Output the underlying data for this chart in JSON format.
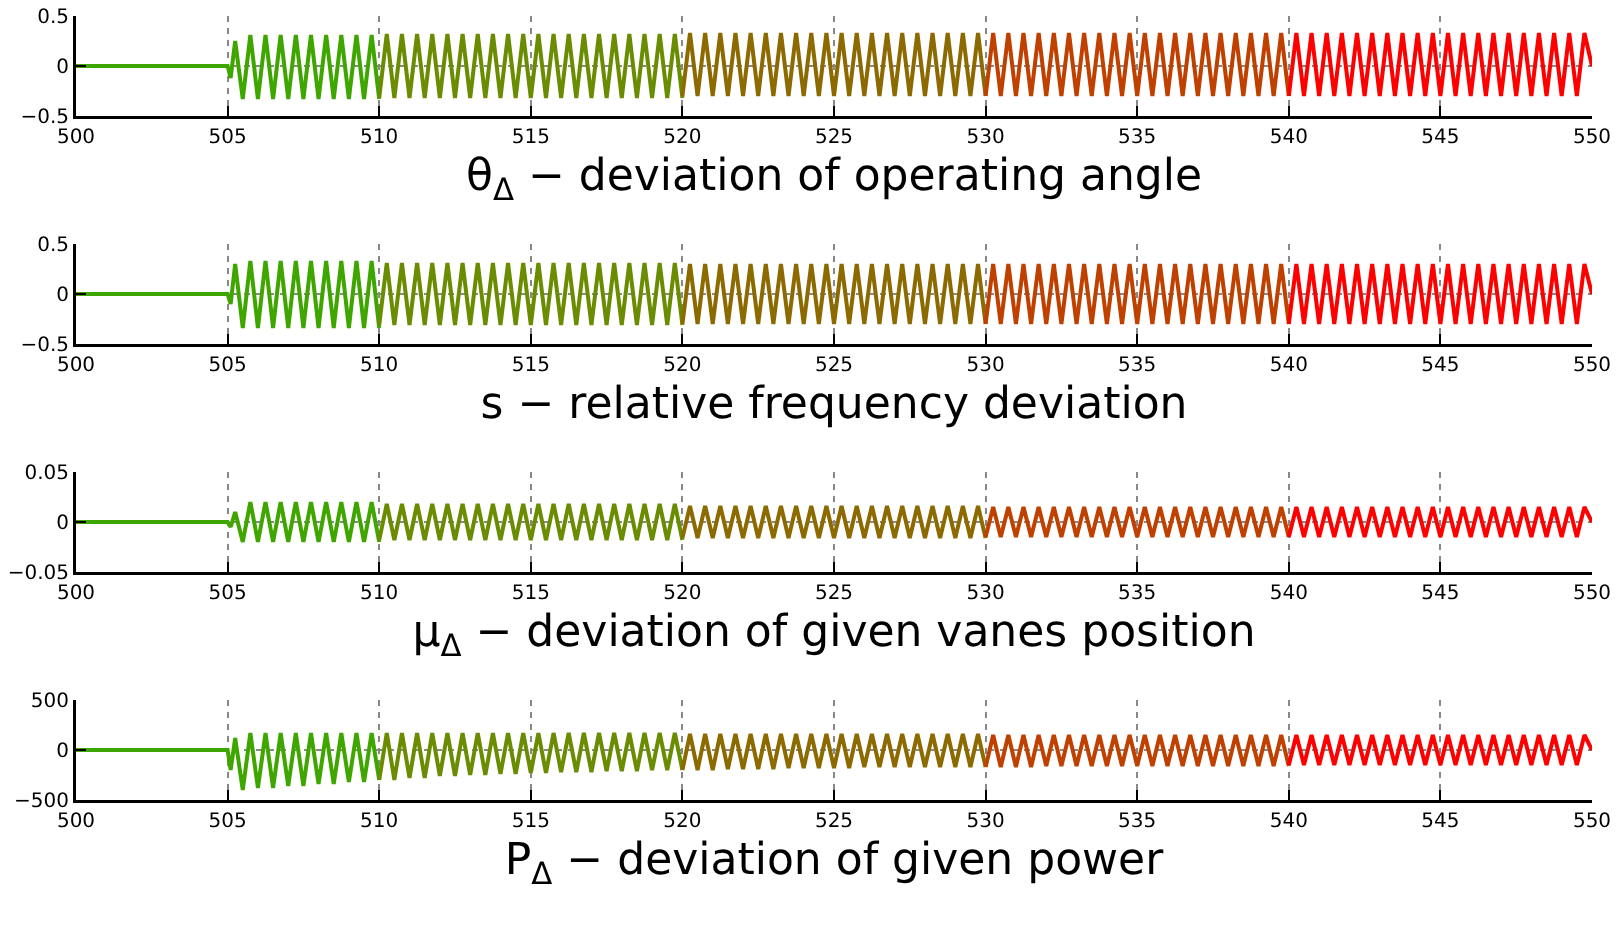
{
  "chart_data": [
    {
      "type": "line",
      "xlabel": "θ$_{Δ}$ − deviation of operating angle",
      "xlim": [
        500,
        550
      ],
      "xticks": [
        500,
        505,
        510,
        515,
        520,
        525,
        530,
        535,
        540,
        545,
        550
      ],
      "ylim": [
        -0.5,
        0.5
      ],
      "yticks": [
        -0.5,
        0,
        0.5
      ],
      "grid": true,
      "line_style": "solid",
      "marker": "none",
      "series": [
        {
          "color": "#3fa600",
          "x": [
            500,
            505,
            505.1,
            505.25,
            505.5,
            505.75,
            506,
            506.25,
            506.5,
            506.75,
            507,
            507.25,
            507.5,
            507.75,
            508,
            508.25,
            508.5,
            508.75,
            509,
            509.25,
            509.5,
            509.75,
            510
          ],
          "values": [
            0,
            0,
            -0.12,
            0.25,
            -0.33,
            0.31,
            -0.33,
            0.31,
            -0.33,
            0.31,
            -0.33,
            0.31,
            -0.33,
            0.31,
            -0.33,
            0.31,
            -0.33,
            0.31,
            -0.33,
            0.31,
            -0.33,
            0.31,
            -0.33
          ]
        },
        {
          "color": "#6a8c00",
          "x": [
            510,
            510.25,
            510.5,
            510.75,
            511,
            511.25,
            511.5,
            511.75,
            512,
            512.25,
            512.5,
            512.75,
            513,
            513.25,
            513.5,
            513.75,
            514,
            514.25,
            514.5,
            514.75,
            515,
            515.25,
            515.5,
            515.75,
            516,
            516.25,
            516.5,
            516.75,
            517,
            517.25,
            517.5,
            517.75,
            518,
            518.25,
            518.5,
            518.75,
            519,
            519.25,
            519.5,
            519.75,
            520
          ],
          "values": [
            -0.32,
            0.32,
            -0.32,
            0.32,
            -0.32,
            0.32,
            -0.32,
            0.32,
            -0.32,
            0.32,
            -0.32,
            0.32,
            -0.32,
            0.32,
            -0.32,
            0.32,
            -0.32,
            0.32,
            -0.32,
            0.32,
            -0.32,
            0.32,
            -0.32,
            0.32,
            -0.32,
            0.32,
            -0.32,
            0.32,
            -0.32,
            0.32,
            -0.32,
            0.32,
            -0.32,
            0.32,
            -0.32,
            0.32,
            -0.32,
            0.32,
            -0.32,
            0.32,
            -0.32
          ]
        },
        {
          "color": "#8c6a00",
          "x": [
            520,
            520.25,
            520.5,
            520.75,
            521,
            521.25,
            521.5,
            521.75,
            522,
            522.25,
            522.5,
            522.75,
            523,
            523.25,
            523.5,
            523.75,
            524,
            524.25,
            524.5,
            524.75,
            525,
            525.25,
            525.5,
            525.75,
            526,
            526.25,
            526.5,
            526.75,
            527,
            527.25,
            527.5,
            527.75,
            528,
            528.25,
            528.5,
            528.75,
            529,
            529.25,
            529.5,
            529.75,
            530
          ],
          "values": [
            -0.3,
            0.33,
            -0.3,
            0.33,
            -0.3,
            0.33,
            -0.3,
            0.33,
            -0.3,
            0.33,
            -0.3,
            0.33,
            -0.3,
            0.33,
            -0.3,
            0.33,
            -0.3,
            0.33,
            -0.3,
            0.33,
            -0.3,
            0.33,
            -0.3,
            0.33,
            -0.3,
            0.33,
            -0.3,
            0.33,
            -0.3,
            0.33,
            -0.3,
            0.33,
            -0.3,
            0.33,
            -0.3,
            0.33,
            -0.3,
            0.33,
            -0.3,
            0.33,
            -0.3
          ]
        },
        {
          "color": "#c04000",
          "x": [
            530,
            530.25,
            530.5,
            530.75,
            531,
            531.25,
            531.5,
            531.75,
            532,
            532.25,
            532.5,
            532.75,
            533,
            533.25,
            533.5,
            533.75,
            534,
            534.25,
            534.5,
            534.75,
            535,
            535.25,
            535.5,
            535.75,
            536,
            536.25,
            536.5,
            536.75,
            537,
            537.25,
            537.5,
            537.75,
            538,
            538.25,
            538.5,
            538.75,
            539,
            539.25,
            539.5,
            539.75,
            540
          ],
          "values": [
            -0.3,
            0.33,
            -0.3,
            0.33,
            -0.3,
            0.33,
            -0.3,
            0.33,
            -0.3,
            0.33,
            -0.3,
            0.33,
            -0.3,
            0.33,
            -0.3,
            0.33,
            -0.3,
            0.33,
            -0.3,
            0.33,
            -0.3,
            0.33,
            -0.3,
            0.33,
            -0.3,
            0.33,
            -0.3,
            0.33,
            -0.3,
            0.33,
            -0.3,
            0.33,
            -0.3,
            0.33,
            -0.3,
            0.33,
            -0.3,
            0.33,
            -0.3,
            0.33,
            -0.3
          ]
        },
        {
          "color": "#ff0000",
          "x": [
            540,
            540.25,
            540.5,
            540.75,
            541,
            541.25,
            541.5,
            541.75,
            542,
            542.25,
            542.5,
            542.75,
            543,
            543.25,
            543.5,
            543.75,
            544,
            544.25,
            544.5,
            544.75,
            545,
            545.25,
            545.5,
            545.75,
            546,
            546.25,
            546.5,
            546.75,
            547,
            547.25,
            547.5,
            547.75,
            548,
            548.25,
            548.5,
            548.75,
            549,
            549.25,
            549.5,
            549.75,
            550
          ],
          "values": [
            -0.3,
            0.33,
            -0.3,
            0.33,
            -0.3,
            0.33,
            -0.3,
            0.33,
            -0.3,
            0.33,
            -0.3,
            0.33,
            -0.3,
            0.33,
            -0.3,
            0.33,
            -0.3,
            0.33,
            -0.3,
            0.33,
            -0.3,
            0.33,
            -0.3,
            0.33,
            -0.3,
            0.33,
            -0.3,
            0.33,
            -0.3,
            0.33,
            -0.3,
            0.33,
            -0.3,
            0.33,
            -0.3,
            0.33,
            -0.3,
            0.33,
            -0.3,
            0.33,
            0
          ]
        }
      ]
    },
    {
      "type": "line",
      "xlabel": "s − relative frequency deviation",
      "xlim": [
        500,
        550
      ],
      "xticks": [
        500,
        505,
        510,
        515,
        520,
        525,
        530,
        535,
        540,
        545,
        550
      ],
      "ylim": [
        -0.5,
        0.5
      ],
      "yticks": [
        -0.5,
        0,
        0.5
      ],
      "grid": true,
      "line_style": "solid",
      "marker": "none",
      "series": [
        {
          "color": "#3fa600",
          "x": [
            500,
            505,
            505.1,
            505.25,
            505.5,
            505.75,
            506,
            506.25,
            506.5,
            506.75,
            507,
            507.25,
            507.5,
            507.75,
            508,
            508.25,
            508.5,
            508.75,
            509,
            509.25,
            509.5,
            509.75,
            510
          ],
          "values": [
            0,
            0,
            -0.1,
            0.3,
            -0.34,
            0.33,
            -0.34,
            0.33,
            -0.34,
            0.33,
            -0.34,
            0.33,
            -0.34,
            0.33,
            -0.34,
            0.33,
            -0.34,
            0.33,
            -0.34,
            0.33,
            -0.34,
            0.33,
            -0.34
          ]
        },
        {
          "color": "#6a8c00",
          "x": [
            510,
            510.25,
            510.5,
            510.75,
            511,
            511.25,
            511.5,
            511.75,
            512,
            512.25,
            512.5,
            512.75,
            513,
            513.25,
            513.5,
            513.75,
            514,
            514.25,
            514.5,
            514.75,
            515,
            515.25,
            515.5,
            515.75,
            516,
            516.25,
            516.5,
            516.75,
            517,
            517.25,
            517.5,
            517.75,
            518,
            518.25,
            518.5,
            518.75,
            519,
            519.25,
            519.5,
            519.75,
            520
          ],
          "values": [
            -0.31,
            0.31,
            -0.31,
            0.31,
            -0.31,
            0.31,
            -0.31,
            0.31,
            -0.31,
            0.31,
            -0.31,
            0.31,
            -0.31,
            0.31,
            -0.31,
            0.31,
            -0.31,
            0.31,
            -0.31,
            0.31,
            -0.31,
            0.31,
            -0.31,
            0.31,
            -0.31,
            0.31,
            -0.31,
            0.31,
            -0.31,
            0.31,
            -0.31,
            0.31,
            -0.31,
            0.31,
            -0.31,
            0.31,
            -0.31,
            0.31,
            -0.31,
            0.31,
            -0.31
          ]
        },
        {
          "color": "#8c6a00",
          "x": [
            520,
            520.25,
            520.5,
            520.75,
            521,
            521.25,
            521.5,
            521.75,
            522,
            522.25,
            522.5,
            522.75,
            523,
            523.25,
            523.5,
            523.75,
            524,
            524.25,
            524.5,
            524.75,
            525,
            525.25,
            525.5,
            525.75,
            526,
            526.25,
            526.5,
            526.75,
            527,
            527.25,
            527.5,
            527.75,
            528,
            528.25,
            528.5,
            528.75,
            529,
            529.25,
            529.5,
            529.75,
            530
          ],
          "values": [
            -0.3,
            0.3,
            -0.3,
            0.3,
            -0.3,
            0.3,
            -0.3,
            0.3,
            -0.3,
            0.3,
            -0.3,
            0.3,
            -0.3,
            0.3,
            -0.3,
            0.3,
            -0.3,
            0.3,
            -0.3,
            0.3,
            -0.3,
            0.3,
            -0.3,
            0.3,
            -0.3,
            0.3,
            -0.3,
            0.3,
            -0.3,
            0.3,
            -0.3,
            0.3,
            -0.3,
            0.3,
            -0.3,
            0.3,
            -0.3,
            0.3,
            -0.3,
            0.3,
            -0.3
          ]
        },
        {
          "color": "#c04000",
          "x": [
            530,
            530.25,
            530.5,
            530.75,
            531,
            531.25,
            531.5,
            531.75,
            532,
            532.25,
            532.5,
            532.75,
            533,
            533.25,
            533.5,
            533.75,
            534,
            534.25,
            534.5,
            534.75,
            535,
            535.25,
            535.5,
            535.75,
            536,
            536.25,
            536.5,
            536.75,
            537,
            537.25,
            537.5,
            537.75,
            538,
            538.25,
            538.5,
            538.75,
            539,
            539.25,
            539.5,
            539.75,
            540
          ],
          "values": [
            -0.3,
            0.3,
            -0.3,
            0.3,
            -0.3,
            0.3,
            -0.3,
            0.3,
            -0.3,
            0.3,
            -0.3,
            0.3,
            -0.3,
            0.3,
            -0.3,
            0.3,
            -0.3,
            0.3,
            -0.3,
            0.3,
            -0.3,
            0.3,
            -0.3,
            0.3,
            -0.3,
            0.3,
            -0.3,
            0.3,
            -0.3,
            0.3,
            -0.3,
            0.3,
            -0.3,
            0.3,
            -0.3,
            0.3,
            -0.3,
            0.3,
            -0.3,
            0.3,
            -0.3
          ]
        },
        {
          "color": "#ff0000",
          "x": [
            540,
            540.25,
            540.5,
            540.75,
            541,
            541.25,
            541.5,
            541.75,
            542,
            542.25,
            542.5,
            542.75,
            543,
            543.25,
            543.5,
            543.75,
            544,
            544.25,
            544.5,
            544.75,
            545,
            545.25,
            545.5,
            545.75,
            546,
            546.25,
            546.5,
            546.75,
            547,
            547.25,
            547.5,
            547.75,
            548,
            548.25,
            548.5,
            548.75,
            549,
            549.25,
            549.5,
            549.75,
            550
          ],
          "values": [
            -0.3,
            0.3,
            -0.3,
            0.3,
            -0.3,
            0.3,
            -0.3,
            0.3,
            -0.3,
            0.3,
            -0.3,
            0.3,
            -0.3,
            0.3,
            -0.3,
            0.3,
            -0.3,
            0.3,
            -0.3,
            0.3,
            -0.3,
            0.3,
            -0.3,
            0.3,
            -0.3,
            0.3,
            -0.3,
            0.3,
            -0.3,
            0.3,
            -0.3,
            0.3,
            -0.3,
            0.3,
            -0.3,
            0.3,
            -0.3,
            0.3,
            -0.3,
            0.3,
            0
          ]
        }
      ]
    },
    {
      "type": "line",
      "xlabel": "μ$_{Δ}$ − deviation of given vanes position",
      "xlim": [
        500,
        550
      ],
      "xticks": [
        500,
        505,
        510,
        515,
        520,
        525,
        530,
        535,
        540,
        545,
        550
      ],
      "ylim": [
        -0.05,
        0.05
      ],
      "yticks": [
        -0.05,
        0,
        0.05
      ],
      "grid": true,
      "line_style": "solid",
      "marker": "none",
      "series": [
        {
          "color": "#3fa600",
          "x": [
            500,
            505,
            505.1,
            505.25,
            505.5,
            505.75,
            506,
            506.25,
            506.5,
            506.75,
            507,
            507.25,
            507.5,
            507.75,
            508,
            508.25,
            508.5,
            508.75,
            509,
            509.25,
            509.5,
            509.75,
            510
          ],
          "values": [
            0,
            0,
            -0.005,
            0.01,
            -0.02,
            0.02,
            -0.02,
            0.02,
            -0.02,
            0.02,
            -0.02,
            0.02,
            -0.02,
            0.02,
            -0.02,
            0.02,
            -0.02,
            0.02,
            -0.02,
            0.02,
            -0.02,
            0.02,
            -0.02
          ]
        },
        {
          "color": "#6a8c00",
          "x": [
            510,
            510.25,
            510.5,
            510.75,
            511,
            511.25,
            511.5,
            511.75,
            512,
            512.25,
            512.5,
            512.75,
            513,
            513.25,
            513.5,
            513.75,
            514,
            514.25,
            514.5,
            514.75,
            515,
            515.25,
            515.5,
            515.75,
            516,
            516.25,
            516.5,
            516.75,
            517,
            517.25,
            517.5,
            517.75,
            518,
            518.25,
            518.5,
            518.75,
            519,
            519.25,
            519.5,
            519.75,
            520
          ],
          "values": [
            -0.018,
            0.018,
            -0.018,
            0.018,
            -0.018,
            0.018,
            -0.018,
            0.018,
            -0.018,
            0.018,
            -0.018,
            0.018,
            -0.018,
            0.018,
            -0.018,
            0.018,
            -0.018,
            0.018,
            -0.018,
            0.018,
            -0.018,
            0.018,
            -0.018,
            0.018,
            -0.018,
            0.018,
            -0.018,
            0.018,
            -0.018,
            0.018,
            -0.018,
            0.018,
            -0.018,
            0.018,
            -0.018,
            0.018,
            -0.018,
            0.018,
            -0.018,
            0.018,
            -0.018
          ]
        },
        {
          "color": "#8c6a00",
          "x": [
            520,
            520.25,
            520.5,
            520.75,
            521,
            521.25,
            521.5,
            521.75,
            522,
            522.25,
            522.5,
            522.75,
            523,
            523.25,
            523.5,
            523.75,
            524,
            524.25,
            524.5,
            524.75,
            525,
            525.25,
            525.5,
            525.75,
            526,
            526.25,
            526.5,
            526.75,
            527,
            527.25,
            527.5,
            527.75,
            528,
            528.25,
            528.5,
            528.75,
            529,
            529.25,
            529.5,
            529.75,
            530
          ],
          "values": [
            -0.016,
            0.016,
            -0.016,
            0.016,
            -0.016,
            0.016,
            -0.016,
            0.016,
            -0.016,
            0.016,
            -0.016,
            0.016,
            -0.016,
            0.016,
            -0.016,
            0.016,
            -0.016,
            0.016,
            -0.016,
            0.016,
            -0.016,
            0.016,
            -0.016,
            0.016,
            -0.016,
            0.016,
            -0.016,
            0.016,
            -0.016,
            0.016,
            -0.016,
            0.016,
            -0.016,
            0.016,
            -0.016,
            0.016,
            -0.016,
            0.016,
            -0.016,
            0.016,
            -0.016
          ]
        },
        {
          "color": "#c04000",
          "x": [
            530,
            530.25,
            530.5,
            530.75,
            531,
            531.25,
            531.5,
            531.75,
            532,
            532.25,
            532.5,
            532.75,
            533,
            533.25,
            533.5,
            533.75,
            534,
            534.25,
            534.5,
            534.75,
            535,
            535.25,
            535.5,
            535.75,
            536,
            536.25,
            536.5,
            536.75,
            537,
            537.25,
            537.5,
            537.75,
            538,
            538.25,
            538.5,
            538.75,
            539,
            539.25,
            539.5,
            539.75,
            540
          ],
          "values": [
            -0.015,
            0.015,
            -0.015,
            0.015,
            -0.015,
            0.015,
            -0.015,
            0.015,
            -0.015,
            0.015,
            -0.015,
            0.015,
            -0.015,
            0.015,
            -0.015,
            0.015,
            -0.015,
            0.015,
            -0.015,
            0.015,
            -0.015,
            0.015,
            -0.015,
            0.015,
            -0.015,
            0.015,
            -0.015,
            0.015,
            -0.015,
            0.015,
            -0.015,
            0.015,
            -0.015,
            0.015,
            -0.015,
            0.015,
            -0.015,
            0.015,
            -0.015,
            0.015,
            -0.015
          ]
        },
        {
          "color": "#ff0000",
          "x": [
            540,
            540.25,
            540.5,
            540.75,
            541,
            541.25,
            541.5,
            541.75,
            542,
            542.25,
            542.5,
            542.75,
            543,
            543.25,
            543.5,
            543.75,
            544,
            544.25,
            544.5,
            544.75,
            545,
            545.25,
            545.5,
            545.75,
            546,
            546.25,
            546.5,
            546.75,
            547,
            547.25,
            547.5,
            547.75,
            548,
            548.25,
            548.5,
            548.75,
            549,
            549.25,
            549.5,
            549.75,
            550
          ],
          "values": [
            -0.015,
            0.015,
            -0.015,
            0.015,
            -0.015,
            0.015,
            -0.015,
            0.015,
            -0.015,
            0.015,
            -0.015,
            0.015,
            -0.015,
            0.015,
            -0.015,
            0.015,
            -0.015,
            0.015,
            -0.015,
            0.015,
            -0.015,
            0.015,
            -0.015,
            0.015,
            -0.015,
            0.015,
            -0.015,
            0.015,
            -0.015,
            0.015,
            -0.015,
            0.015,
            -0.015,
            0.015,
            -0.015,
            0.015,
            -0.015,
            0.015,
            -0.015,
            0.015,
            0
          ]
        }
      ]
    },
    {
      "type": "line",
      "xlabel": "P$_{Δ}$ − deviation of given power",
      "xlim": [
        500,
        550
      ],
      "xticks": [
        500,
        505,
        510,
        515,
        520,
        525,
        530,
        535,
        540,
        545,
        550
      ],
      "ylim": [
        -500,
        500
      ],
      "yticks": [
        -500,
        0,
        500
      ],
      "grid": true,
      "line_style": "solid",
      "marker": "none",
      "series": [
        {
          "color": "#3fa600",
          "x": [
            500,
            505,
            505.1,
            505.25,
            505.5,
            505.75,
            506,
            506.25,
            506.5,
            506.75,
            507,
            507.25,
            507.5,
            507.75,
            508,
            508.25,
            508.5,
            508.75,
            509,
            509.25,
            509.5,
            509.75,
            510
          ],
          "values": [
            0,
            0,
            -200,
            120,
            -400,
            170,
            -380,
            170,
            -380,
            170,
            -360,
            170,
            -360,
            170,
            -340,
            170,
            -340,
            170,
            -320,
            170,
            -320,
            170,
            -300
          ]
        },
        {
          "color": "#6a8c00",
          "x": [
            510,
            510.25,
            510.5,
            510.75,
            511,
            511.25,
            511.5,
            511.75,
            512,
            512.25,
            512.5,
            512.75,
            513,
            513.25,
            513.5,
            513.75,
            514,
            514.25,
            514.5,
            514.75,
            515,
            515.25,
            515.5,
            515.75,
            516,
            516.25,
            516.5,
            516.75,
            517,
            517.25,
            517.5,
            517.75,
            518,
            518.25,
            518.5,
            518.75,
            519,
            519.25,
            519.5,
            519.75,
            520
          ],
          "values": [
            -300,
            170,
            -300,
            170,
            -280,
            170,
            -280,
            170,
            -260,
            170,
            -260,
            170,
            -250,
            170,
            -250,
            170,
            -240,
            170,
            -240,
            170,
            -230,
            170,
            -230,
            170,
            -220,
            170,
            -220,
            170,
            -220,
            170,
            -210,
            170,
            -210,
            170,
            -210,
            170,
            -200,
            170,
            -200,
            170,
            -200
          ]
        },
        {
          "color": "#8c6a00",
          "x": [
            520,
            520.25,
            520.5,
            520.75,
            521,
            521.25,
            521.5,
            521.75,
            522,
            522.25,
            522.5,
            522.75,
            523,
            523.25,
            523.5,
            523.75,
            524,
            524.25,
            524.5,
            524.75,
            525,
            525.25,
            525.5,
            525.75,
            526,
            526.25,
            526.5,
            526.75,
            527,
            527.25,
            527.5,
            527.75,
            528,
            528.25,
            528.5,
            528.75,
            529,
            529.25,
            529.5,
            529.75,
            530
          ],
          "values": [
            -200,
            160,
            -200,
            160,
            -200,
            160,
            -190,
            160,
            -190,
            160,
            -190,
            160,
            -190,
            160,
            -180,
            160,
            -180,
            160,
            -180,
            160,
            -180,
            160,
            -180,
            160,
            -170,
            160,
            -170,
            160,
            -170,
            160,
            -170,
            160,
            -170,
            160,
            -170,
            160,
            -170,
            160,
            -170,
            160,
            -170
          ]
        },
        {
          "color": "#c04000",
          "x": [
            530,
            530.25,
            530.5,
            530.75,
            531,
            531.25,
            531.5,
            531.75,
            532,
            532.25,
            532.5,
            532.75,
            533,
            533.25,
            533.5,
            533.75,
            534,
            534.25,
            534.5,
            534.75,
            535,
            535.25,
            535.5,
            535.75,
            536,
            536.25,
            536.5,
            536.75,
            537,
            537.25,
            537.5,
            537.75,
            538,
            538.25,
            538.5,
            538.75,
            539,
            539.25,
            539.5,
            539.75,
            540
          ],
          "values": [
            -170,
            150,
            -170,
            150,
            -170,
            150,
            -170,
            150,
            -160,
            150,
            -160,
            150,
            -160,
            150,
            -160,
            150,
            -160,
            150,
            -160,
            150,
            -160,
            150,
            -160,
            150,
            -160,
            150,
            -160,
            150,
            -160,
            150,
            -160,
            150,
            -160,
            150,
            -160,
            150,
            -160,
            150,
            -160,
            150,
            -160
          ]
        },
        {
          "color": "#ff0000",
          "x": [
            540,
            540.25,
            540.5,
            540.75,
            541,
            541.25,
            541.5,
            541.75,
            542,
            542.25,
            542.5,
            542.75,
            543,
            543.25,
            543.5,
            543.75,
            544,
            544.25,
            544.5,
            544.75,
            545,
            545.25,
            545.5,
            545.75,
            546,
            546.25,
            546.5,
            546.75,
            547,
            547.25,
            547.5,
            547.75,
            548,
            548.25,
            548.5,
            548.75,
            549,
            549.25,
            549.5,
            549.75,
            550
          ],
          "values": [
            -150,
            150,
            -150,
            150,
            -150,
            150,
            -150,
            150,
            -150,
            150,
            -150,
            150,
            -150,
            150,
            -150,
            150,
            -150,
            150,
            -150,
            150,
            -150,
            150,
            -150,
            150,
            -150,
            150,
            -150,
            150,
            -150,
            150,
            -150,
            150,
            -150,
            150,
            -150,
            150,
            -150,
            150,
            -150,
            150,
            0
          ]
        }
      ]
    }
  ]
}
